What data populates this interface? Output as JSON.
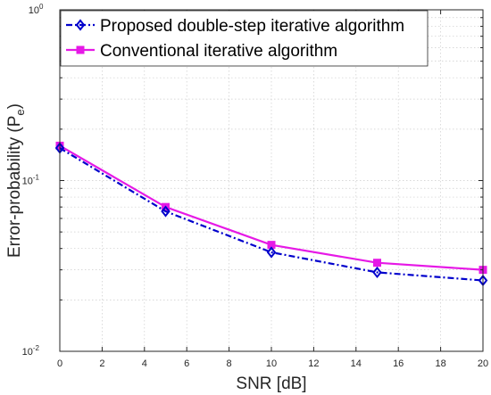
{
  "chart_data": {
    "type": "line",
    "title": "",
    "xlabel": "SNR [dB]",
    "ylabel_main": "Error-probability (P",
    "ylabel_sub": "e",
    "ylabel_close": ")",
    "xlim": [
      0,
      20
    ],
    "ylim": [
      0.01,
      1
    ],
    "yscale": "log",
    "grid": true,
    "legend_position": "top-left",
    "x_ticks": [
      0,
      2,
      4,
      6,
      8,
      10,
      12,
      14,
      16,
      18,
      20
    ],
    "y_tick_labels": [
      {
        "value": 0.01,
        "base": "10",
        "exp": "-2"
      },
      {
        "value": 0.1,
        "base": "10",
        "exp": "-1"
      },
      {
        "value": 1,
        "base": "10",
        "exp": "0"
      }
    ],
    "series": [
      {
        "name": "Proposed double-step iterative algorithm",
        "color": "#0000cc",
        "marker": "diamond",
        "line_style": "dash-dot",
        "x": [
          0,
          5,
          10,
          15,
          20
        ],
        "y": [
          0.155,
          0.066,
          0.038,
          0.029,
          0.026
        ]
      },
      {
        "name": "Conventional iterative algorithm",
        "color": "#e619e6",
        "marker": "square",
        "line_style": "solid",
        "x": [
          0,
          5,
          10,
          15,
          20
        ],
        "y": [
          0.16,
          0.07,
          0.042,
          0.033,
          0.03
        ]
      }
    ]
  }
}
